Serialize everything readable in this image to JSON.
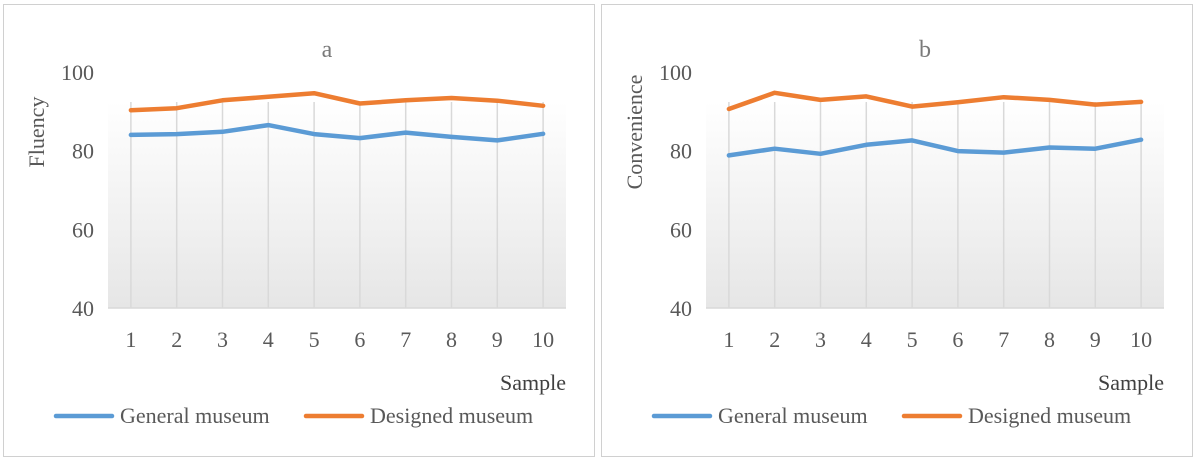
{
  "chart_data": [
    {
      "panel": "a",
      "type": "line",
      "title": "a",
      "ylabel": "Fluency",
      "xlabel": "Sample",
      "ylim": [
        40,
        100
      ],
      "yticks": [
        40,
        60,
        80,
        100
      ],
      "categories": [
        "1",
        "2",
        "3",
        "4",
        "5",
        "6",
        "7",
        "8",
        "9",
        "10"
      ],
      "legend_position": "bottom",
      "series": [
        {
          "name": "General museum",
          "color": "#5b9bd5",
          "values": [
            84.0,
            84.2,
            84.8,
            86.5,
            84.2,
            83.2,
            84.6,
            83.5,
            82.6,
            84.3
          ]
        },
        {
          "name": "Designed museum",
          "color": "#ed7d31",
          "values": [
            90.3,
            90.8,
            92.8,
            93.7,
            94.6,
            92.0,
            92.8,
            93.4,
            92.7,
            91.4
          ]
        }
      ]
    },
    {
      "panel": "b",
      "type": "line",
      "title": "b",
      "ylabel": "Convenience",
      "xlabel": "Sample",
      "ylim": [
        40,
        100
      ],
      "yticks": [
        40,
        60,
        80,
        100
      ],
      "categories": [
        "1",
        "2",
        "3",
        "4",
        "5",
        "6",
        "7",
        "8",
        "9",
        "10"
      ],
      "legend_position": "bottom",
      "series": [
        {
          "name": "General museum",
          "color": "#5b9bd5",
          "values": [
            78.8,
            80.5,
            79.2,
            81.5,
            82.6,
            79.9,
            79.5,
            80.8,
            80.5,
            82.8
          ]
        },
        {
          "name": "Designed museum",
          "color": "#ed7d31",
          "values": [
            90.6,
            94.7,
            92.9,
            93.8,
            91.2,
            92.3,
            93.6,
            92.9,
            91.7,
            92.4
          ]
        }
      ]
    }
  ]
}
